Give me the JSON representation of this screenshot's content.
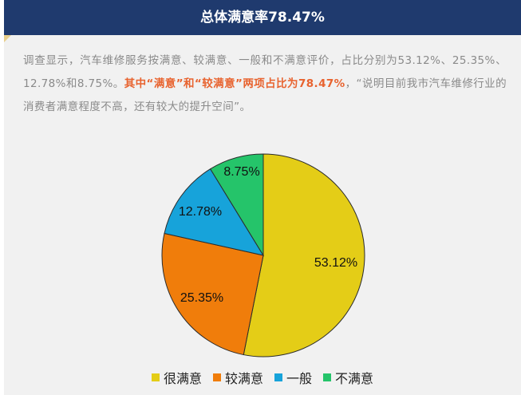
{
  "header": {
    "title": "总体满意率78.47%"
  },
  "intro": {
    "text_plain": "调查显示，汽车维修服务按满意、较满意、一般和不满意评价，占比分别为53.12%、25.35%、12.78%和8.75%。",
    "text_highlight": "其中“满意”和“较满意”两项占比为78.47%",
    "text_tail": "，“说明目前我市汽车维修行业的消费者满意程度不高，还有较大的提升空间”。"
  },
  "chart_data": {
    "type": "pie",
    "slices": [
      {
        "label": "很满意",
        "value": 53.12,
        "display": "53.12%",
        "color": "#e4cd17"
      },
      {
        "label": "较满意",
        "value": 25.35,
        "display": "25.35%",
        "color": "#f07d0b"
      },
      {
        "label": "一般",
        "value": 12.78,
        "display": "12.78%",
        "color": "#17a3da"
      },
      {
        "label": "不满意",
        "value": 8.75,
        "display": "8.75%",
        "color": "#25c46a"
      }
    ],
    "start": "12 o'clock",
    "direction": "clockwise",
    "legend_position": "bottom"
  }
}
